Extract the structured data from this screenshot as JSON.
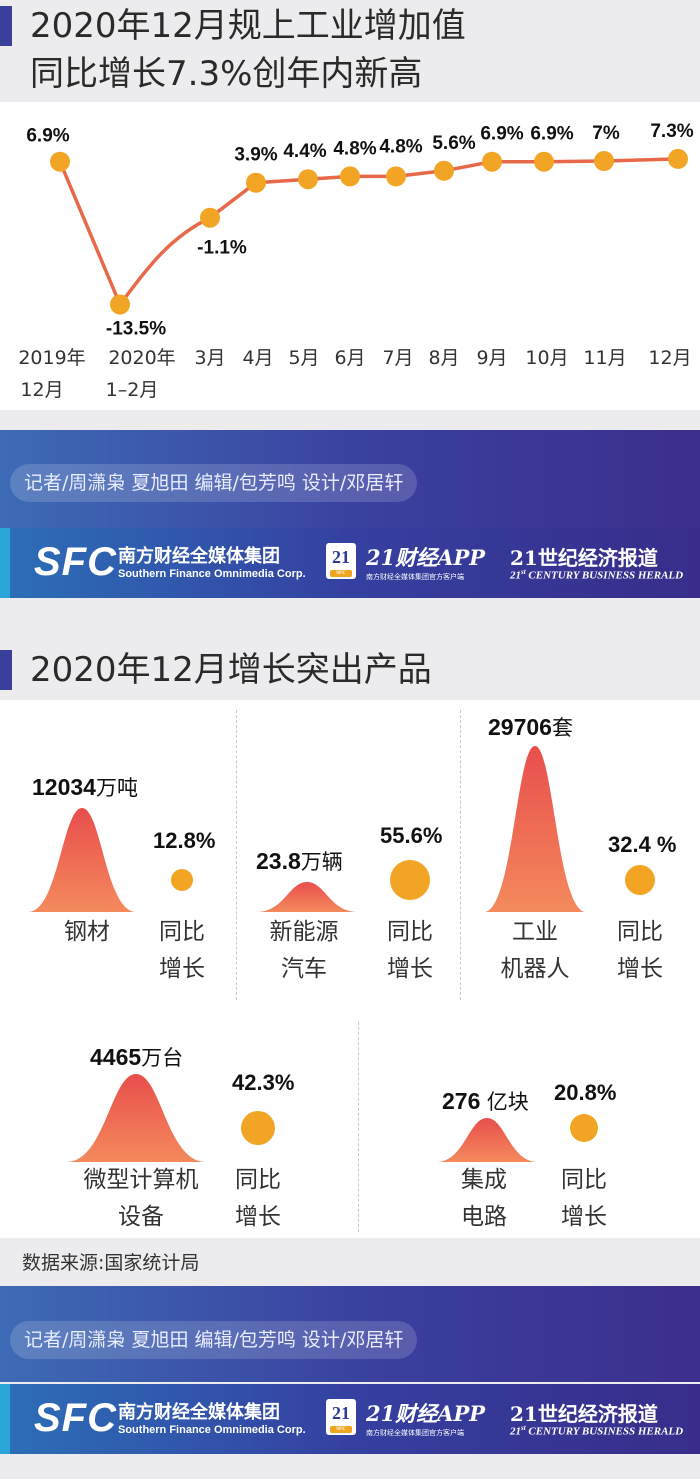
{
  "colors": {
    "accent_line": "#e8684a",
    "point": "#f2a524",
    "bell_top": "#e84e4c",
    "bell_bottom": "#f48a5c",
    "band": "#3a3f9e"
  },
  "header1": {
    "line1": "2020年12月规上工业增加值",
    "line2": "同比增长7.3%创年内新高"
  },
  "chart_data": {
    "type": "line",
    "categories": [
      "2019年12月",
      "2020年1–2月",
      "3月",
      "4月",
      "5月",
      "6月",
      "7月",
      "8月",
      "9月",
      "10月",
      "11月",
      "12月"
    ],
    "tick_labels": [
      {
        "l1": "2019年",
        "l2": "12月"
      },
      {
        "l1": "2020年",
        "l2": "1–2月"
      },
      {
        "l1": "3月",
        "l2": ""
      },
      {
        "l1": "4月",
        "l2": ""
      },
      {
        "l1": "5月",
        "l2": ""
      },
      {
        "l1": "6月",
        "l2": ""
      },
      {
        "l1": "7月",
        "l2": ""
      },
      {
        "l1": "8月",
        "l2": ""
      },
      {
        "l1": "9月",
        "l2": ""
      },
      {
        "l1": "10月",
        "l2": ""
      },
      {
        "l1": "11月",
        "l2": ""
      },
      {
        "l1": "12月",
        "l2": ""
      }
    ],
    "values": [
      6.9,
      -13.5,
      -1.1,
      3.9,
      4.4,
      4.8,
      4.8,
      5.6,
      6.9,
      6.9,
      7.0,
      7.3
    ],
    "marked": [
      true,
      true,
      true,
      true,
      true,
      true,
      true,
      true,
      true,
      true,
      true,
      true
    ],
    "data_labels": [
      "6.9%",
      "-13.5%",
      "-1.1%",
      "3.9%",
      "4.4%",
      "4.8%",
      "4.8%",
      "5.6%",
      "6.9%",
      "6.9%",
      "7%",
      "7.3%"
    ],
    "ylim": [
      -14,
      8
    ],
    "grid": false
  },
  "credits": {
    "text": "记者/周潇枭 夏旭田  编辑/包芳鸣  设计/邓居轩"
  },
  "brand": {
    "sfc": "SFC",
    "sfc_cn": "南方财经全媒体集团",
    "sfc_en": "Southern Finance Omnimedia Corp.",
    "app_badge": "21",
    "app_badge_sub": "SFC",
    "app_name": "21财经APP",
    "app_sub": "南方财经全媒体集团官方客户端",
    "herald_cn": "21世纪经济报道",
    "herald_en_pre": "21",
    "herald_en_sup": "st",
    "herald_en": " CENTURY BUSINESS HERALD"
  },
  "header2": {
    "title": "2020年12月增长突出产品"
  },
  "products": [
    {
      "qty": "12034",
      "unit": "万吨",
      "name1": "钢材",
      "name2": "",
      "pct": "12.8%",
      "yoy1": "同比",
      "yoy2": "增长"
    },
    {
      "qty": "23.8",
      "unit": "万辆",
      "name1": "新能源",
      "name2": "汽车",
      "pct": "55.6%",
      "yoy1": "同比",
      "yoy2": "增长"
    },
    {
      "qty": "29706",
      "unit": "套",
      "name1": "工业",
      "name2": "机器人",
      "pct": "32.4 %",
      "yoy1": "同比",
      "yoy2": "增长"
    },
    {
      "qty": "4465",
      "unit": "万台",
      "name1": "微型计算机",
      "name2": "设备",
      "pct": "42.3%",
      "yoy1": "同比",
      "yoy2": "增长"
    },
    {
      "qty": "276 ",
      "unit": "亿块",
      "name1": "集成",
      "name2": "电路",
      "pct": "20.8%",
      "yoy1": "同比",
      "yoy2": "增长"
    }
  ],
  "source": "数据来源:国家统计局"
}
